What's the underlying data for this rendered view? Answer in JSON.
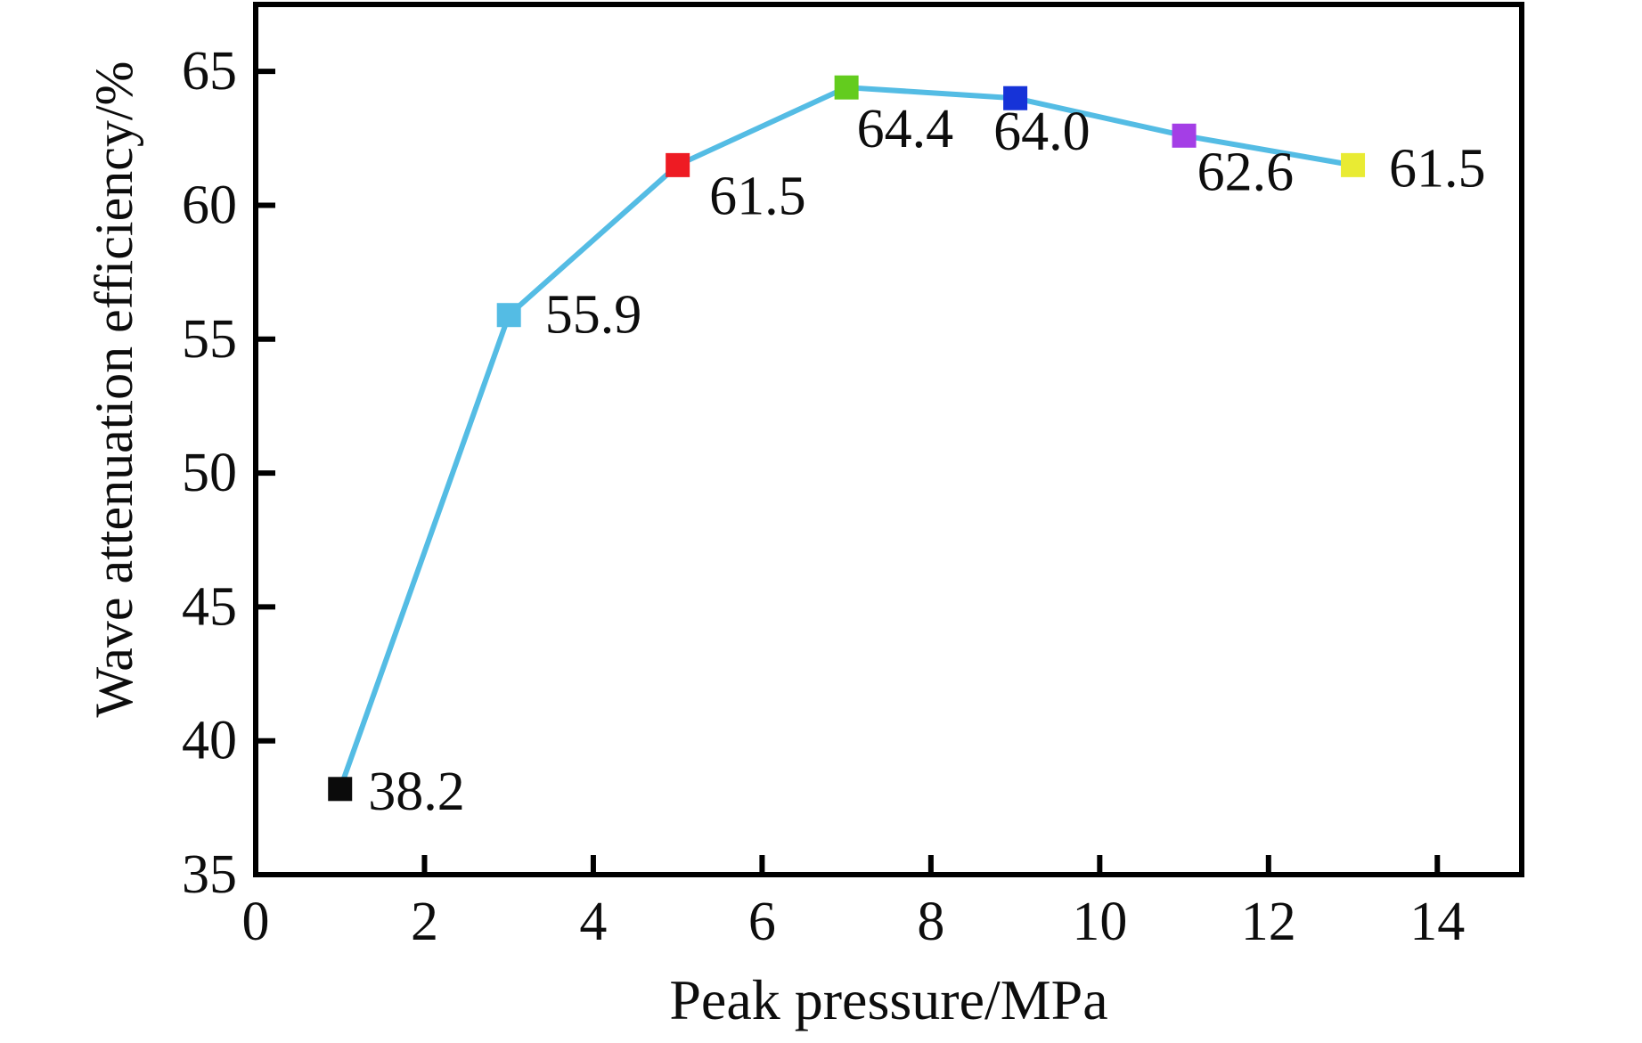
{
  "figure": {
    "background": "#ffffff",
    "text_color": "#0d0d0d",
    "frame_color": "#000000"
  },
  "chart_data": {
    "type": "line",
    "title": "",
    "xlabel": "Peak pressure/MPa",
    "ylabel": "Wave attenuation efficiency/%",
    "xlim": [
      0,
      15
    ],
    "ylim": [
      35,
      67.5
    ],
    "xticks": [
      "0",
      "2",
      "4",
      "6",
      "8",
      "10",
      "12",
      "14"
    ],
    "yticks": [
      "35",
      "40",
      "45",
      "50",
      "55",
      "60",
      "65"
    ],
    "grid": false,
    "legend": "none",
    "line_color": "#54bce4",
    "series": [
      {
        "name": "wave attenuation efficiency",
        "x": [
          1,
          3,
          5,
          7,
          9,
          11,
          13
        ],
        "y": [
          38.2,
          55.9,
          61.5,
          64.4,
          64.0,
          62.6,
          61.5
        ],
        "marker": "square",
        "marker_colors": [
          "#0b0b0b",
          "#54bce4",
          "#ee1b23",
          "#63cc1e",
          "#1633d8",
          "#a43ee6",
          "#e9eb33"
        ],
        "point_labels": [
          "38.2",
          "55.9",
          "61.5",
          "64.4",
          "64.0",
          "62.6",
          "61.5"
        ],
        "label_offsets": [
          [
            18,
            3
          ],
          [
            27,
            0
          ],
          [
            22,
            35
          ],
          [
            -2,
            47
          ],
          [
            -38,
            38
          ],
          [
            1,
            41
          ],
          [
            27,
            4
          ]
        ]
      }
    ]
  }
}
